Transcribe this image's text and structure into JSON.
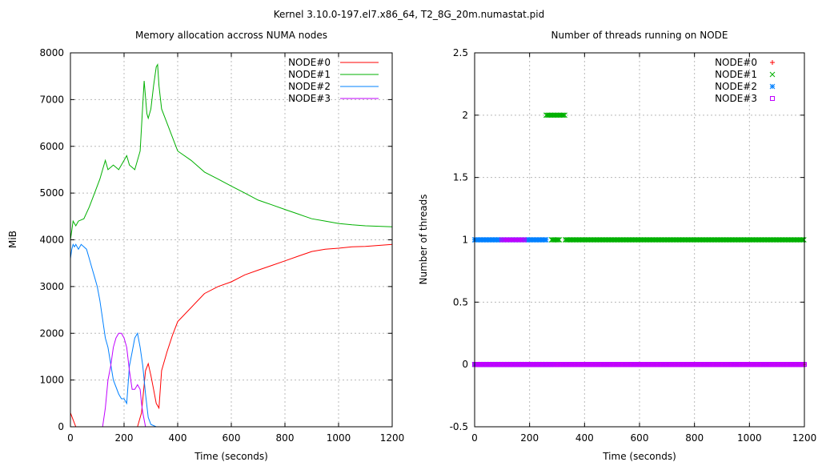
{
  "suptitle": "Kernel 3.10.0-197.el7.x86_64, T2_8G_20m.numastat.pid",
  "colors": {
    "NODE#0": "#ff0000",
    "NODE#1": "#00b000",
    "NODE#2": "#0080ff",
    "NODE#3": "#c000ff"
  },
  "chart_data": [
    {
      "type": "line",
      "title": "Memory allocation accross NUMA nodes",
      "xlabel": "Time (seconds)",
      "ylabel": "MiB",
      "xlim": [
        0,
        1200
      ],
      "ylim": [
        0,
        8000
      ],
      "xticks": [
        0,
        200,
        400,
        600,
        800,
        1000,
        1200
      ],
      "yticks": [
        0,
        1000,
        2000,
        3000,
        4000,
        5000,
        6000,
        7000,
        8000
      ],
      "grid": true,
      "legend": "top-right",
      "series": [
        {
          "name": "NODE#0",
          "x": [
            0,
            10,
            20,
            30,
            40,
            60,
            80,
            100,
            200,
            250,
            265,
            280,
            290,
            300,
            310,
            320,
            330,
            340,
            360,
            380,
            400,
            450,
            500,
            550,
            600,
            650,
            700,
            750,
            800,
            850,
            900,
            950,
            1000,
            1050,
            1100,
            1150,
            1200
          ],
          "y": [
            300,
            150,
            0,
            0,
            0,
            0,
            0,
            0,
            0,
            0,
            300,
            1200,
            1350,
            1100,
            800,
            500,
            400,
            1200,
            1600,
            1950,
            2250,
            2550,
            2850,
            3000,
            3100,
            3250,
            3350,
            3450,
            3550,
            3650,
            3750,
            3800,
            3820,
            3850,
            3860,
            3880,
            3900
          ]
        },
        {
          "name": "NODE#1",
          "x": [
            0,
            5,
            10,
            20,
            30,
            50,
            70,
            90,
            110,
            120,
            130,
            140,
            160,
            180,
            200,
            210,
            220,
            240,
            260,
            270,
            275,
            285,
            290,
            300,
            310,
            320,
            325,
            330,
            340,
            360,
            380,
            400,
            450,
            500,
            550,
            600,
            650,
            700,
            750,
            800,
            850,
            900,
            950,
            1000,
            1050,
            1100,
            1150,
            1200
          ],
          "y": [
            4000,
            4200,
            4400,
            4300,
            4400,
            4450,
            4700,
            5000,
            5300,
            5500,
            5700,
            5500,
            5600,
            5500,
            5700,
            5800,
            5600,
            5500,
            5900,
            6900,
            7400,
            6700,
            6600,
            6800,
            7300,
            7700,
            7750,
            7300,
            6800,
            6500,
            6200,
            5900,
            5700,
            5450,
            5300,
            5150,
            5000,
            4850,
            4750,
            4650,
            4550,
            4450,
            4400,
            4350,
            4320,
            4300,
            4290,
            4280
          ]
        },
        {
          "name": "NODE#2",
          "x": [
            0,
            5,
            10,
            15,
            20,
            30,
            40,
            50,
            60,
            70,
            80,
            90,
            100,
            110,
            120,
            130,
            140,
            160,
            180,
            190,
            200,
            210,
            220,
            230,
            240,
            250,
            260,
            270,
            280,
            290,
            300,
            320,
            340,
            400,
            600,
            800,
            1000,
            1200
          ],
          "y": [
            3600,
            3800,
            3900,
            3850,
            3900,
            3800,
            3900,
            3850,
            3800,
            3600,
            3400,
            3200,
            3000,
            2700,
            2300,
            1900,
            1700,
            1000,
            700,
            600,
            600,
            500,
            1300,
            1600,
            1900,
            2000,
            1700,
            1300,
            700,
            200,
            50,
            0,
            0,
            0,
            0,
            0,
            0,
            0
          ]
        },
        {
          "name": "NODE#3",
          "x": [
            0,
            100,
            120,
            130,
            140,
            150,
            160,
            170,
            180,
            190,
            200,
            210,
            220,
            230,
            240,
            250,
            260,
            265,
            270,
            280,
            290,
            300,
            400,
            600,
            800,
            1000,
            1200
          ],
          "y": [
            0,
            0,
            0,
            400,
            1000,
            1300,
            1700,
            1900,
            2000,
            2000,
            1900,
            1700,
            1200,
            800,
            800,
            900,
            800,
            500,
            300,
            0,
            0,
            0,
            0,
            0,
            0,
            0,
            0
          ]
        }
      ]
    },
    {
      "type": "scatter",
      "title": "Number of threads running on NODE",
      "xlabel": "Time (seconds)",
      "ylabel": "Number of threads",
      "xlim": [
        0,
        1200
      ],
      "ylim": [
        -0.5,
        2.5
      ],
      "xticks": [
        0,
        200,
        400,
        600,
        800,
        1000,
        1200
      ],
      "yticks": [
        -0.5,
        0,
        0.5,
        1,
        1.5,
        2,
        2.5
      ],
      "grid": true,
      "legend": "top-right",
      "series": [
        {
          "name": "NODE#0",
          "marker": "+",
          "segments": [
            {
              "from": 0,
              "to": 1200,
              "y": 0
            }
          ]
        },
        {
          "name": "NODE#1",
          "marker": "x",
          "segments": [
            {
              "from": 0,
              "to": 260,
              "y": 0
            },
            {
              "from": 260,
              "to": 330,
              "y": 2
            },
            {
              "from": 280,
              "to": 310,
              "y": 1
            },
            {
              "from": 330,
              "to": 1200,
              "y": 1
            }
          ]
        },
        {
          "name": "NODE#2",
          "marker": "*",
          "segments": [
            {
              "from": 0,
              "to": 260,
              "y": 1
            },
            {
              "from": 0,
              "to": 280,
              "y": 0
            }
          ]
        },
        {
          "name": "NODE#3",
          "marker": "square",
          "segments": [
            {
              "from": 0,
              "to": 300,
              "y": 0
            },
            {
              "from": 100,
              "to": 180,
              "y": 1
            },
            {
              "from": 300,
              "to": 1200,
              "y": 0
            }
          ]
        }
      ]
    }
  ]
}
